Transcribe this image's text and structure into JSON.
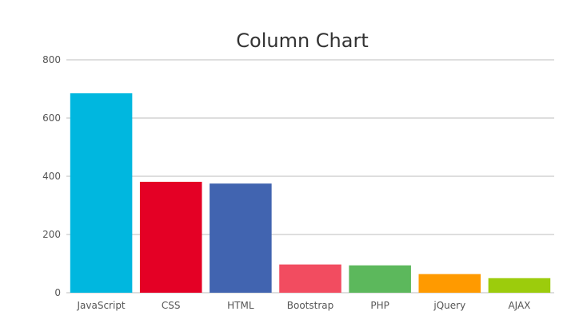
{
  "chart_data": {
    "type": "bar",
    "title": "Column Chart",
    "xlabel": "",
    "ylabel": "",
    "ylim": [
      0,
      800
    ],
    "yticks": [
      0,
      200,
      400,
      600,
      800
    ],
    "grid": true,
    "legend": "none",
    "categories": [
      "JavaScript",
      "CSS",
      "HTML",
      "Bootstrap",
      "PHP",
      "jQuery",
      "AJAX"
    ],
    "values": [
      685,
      381,
      375,
      97,
      94,
      64,
      50
    ],
    "colors": [
      "#00b7df",
      "#e40025",
      "#4164b0",
      "#f24c60",
      "#5cb85c",
      "#ff9a00",
      "#9ccc0c"
    ]
  }
}
